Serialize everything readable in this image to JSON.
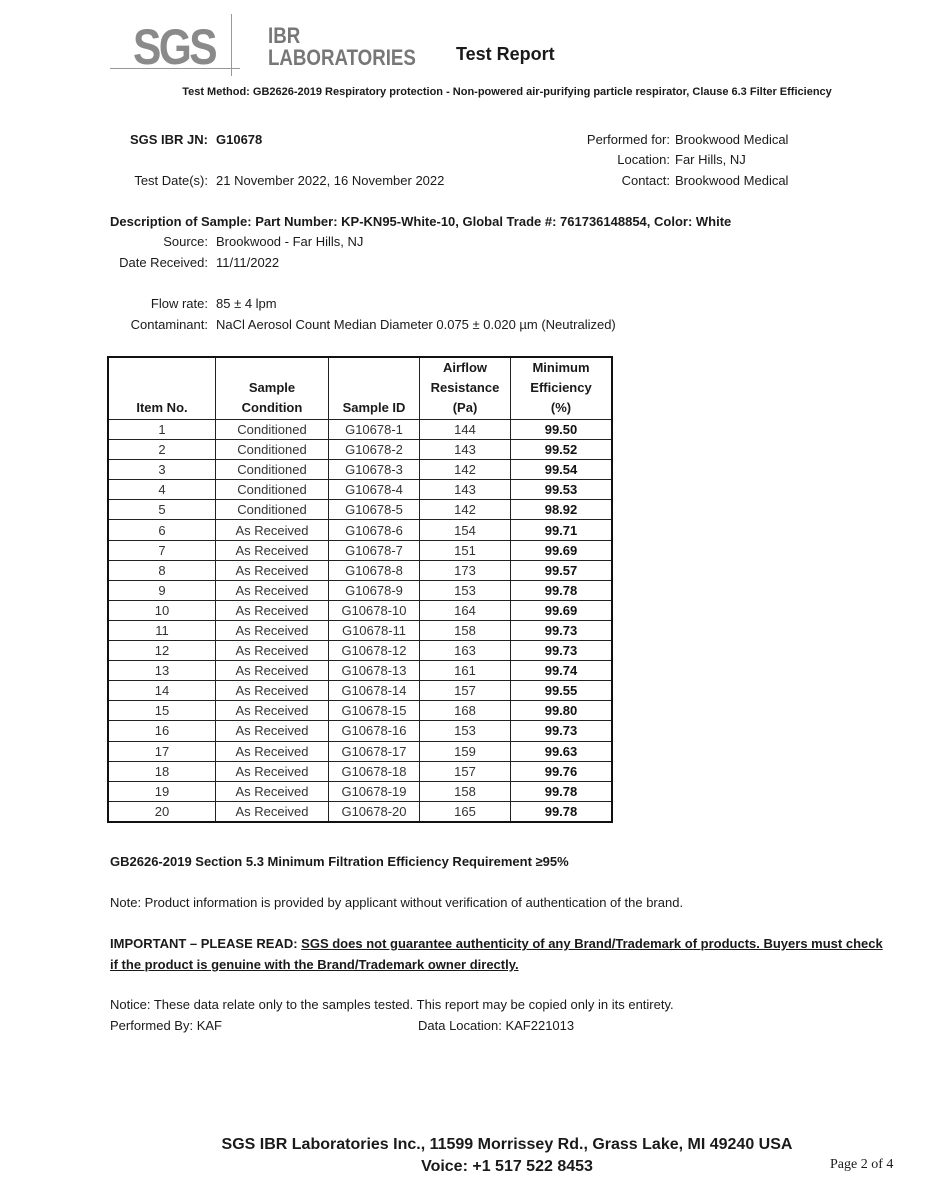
{
  "header": {
    "logo_sgs": "SGS",
    "logo_ibr": "IBR",
    "logo_labs": "LABORATORIES",
    "title": "Test Report",
    "test_method": "Test Method: GB2626-2019 Respiratory protection - Non-powered air-purifying particle respirator, Clause 6.3 Filter Efficiency"
  },
  "info": {
    "jn_label": "SGS IBR JN:",
    "jn_value": "G10678",
    "test_dates_label": "Test Date(s):",
    "test_dates_value": "21 November 2022, 16 November 2022",
    "performed_for_label": "Performed for:",
    "performed_for_value": "Brookwood Medical",
    "location_label": "Location:",
    "location_value": "Far Hills, NJ",
    "contact_label": "Contact:",
    "contact_value": "Brookwood Medical"
  },
  "sample": {
    "description": "Description of Sample: Part Number: KP-KN95-White-10,  Global Trade #: 761736148854,  Color: White",
    "source_label": "Source:",
    "source_value": "Brookwood - Far Hills, NJ",
    "date_received_label": "Date Received:",
    "date_received_value": "11/11/2022",
    "flow_rate_label": "Flow rate:",
    "flow_rate_value": "85 ± 4 lpm",
    "contaminant_label": "Contaminant:",
    "contaminant_value": "NaCl Aerosol Count Median Diameter 0.075 ± 0.020 µm (Neutralized)"
  },
  "table": {
    "headers": [
      "Item No.",
      "Sample Condition",
      "Sample ID",
      "Airflow Resistance (Pa)",
      "Minimum Efficiency (%)"
    ],
    "header_lines": [
      [
        "Item No."
      ],
      [
        "Sample",
        "Condition"
      ],
      [
        "Sample ID"
      ],
      [
        "Airflow",
        "Resistance",
        "(Pa)"
      ],
      [
        "Minimum",
        "Efficiency",
        "(%)"
      ]
    ],
    "rows": [
      [
        "1",
        "Conditioned",
        "G10678-1",
        "144",
        "99.50"
      ],
      [
        "2",
        "Conditioned",
        "G10678-2",
        "143",
        "99.52"
      ],
      [
        "3",
        "Conditioned",
        "G10678-3",
        "142",
        "99.54"
      ],
      [
        "4",
        "Conditioned",
        "G10678-4",
        "143",
        "99.53"
      ],
      [
        "5",
        "Conditioned",
        "G10678-5",
        "142",
        "98.92"
      ],
      [
        "6",
        "As Received",
        "G10678-6",
        "154",
        "99.71"
      ],
      [
        "7",
        "As Received",
        "G10678-7",
        "151",
        "99.69"
      ],
      [
        "8",
        "As Received",
        "G10678-8",
        "173",
        "99.57"
      ],
      [
        "9",
        "As Received",
        "G10678-9",
        "153",
        "99.78"
      ],
      [
        "10",
        "As Received",
        "G10678-10",
        "164",
        "99.69"
      ],
      [
        "11",
        "As Received",
        "G10678-11",
        "158",
        "99.73"
      ],
      [
        "12",
        "As Received",
        "G10678-12",
        "163",
        "99.73"
      ],
      [
        "13",
        "As Received",
        "G10678-13",
        "161",
        "99.74"
      ],
      [
        "14",
        "As Received",
        "G10678-14",
        "157",
        "99.55"
      ],
      [
        "15",
        "As Received",
        "G10678-15",
        "168",
        "99.80"
      ],
      [
        "16",
        "As Received",
        "G10678-16",
        "153",
        "99.73"
      ],
      [
        "17",
        "As Received",
        "G10678-17",
        "159",
        "99.63"
      ],
      [
        "18",
        "As Received",
        "G10678-18",
        "157",
        "99.76"
      ],
      [
        "19",
        "As Received",
        "G10678-19",
        "158",
        "99.78"
      ],
      [
        "20",
        "As Received",
        "G10678-20",
        "165",
        "99.78"
      ]
    ]
  },
  "notes": {
    "requirement": "GB2626-2019 Section 5.3 Minimum Filtration Efficiency Requirement ≥95%",
    "note": "Note: Product information is provided by applicant without verification of authentication of the brand.",
    "important_prefix": "IMPORTANT – PLEASE READ: ",
    "important_line1": "SGS does not guarantee authenticity of any Brand/Trademark of products. Buyers must check",
    "important_line2": "if the product is genuine with the Brand/Trademark owner directly.",
    "notice": "Notice: These data relate only to the samples tested. This report may be copied only in its entirety.",
    "performed_by": "Performed By: KAF",
    "data_location": "Data Location: KAF221013"
  },
  "footer": {
    "address": "SGS IBR Laboratories Inc., 11599 Morrissey Rd., Grass Lake, MI 49240 USA",
    "voice": "Voice: +1 517 522 8453",
    "page": "Page 2 of 4"
  }
}
